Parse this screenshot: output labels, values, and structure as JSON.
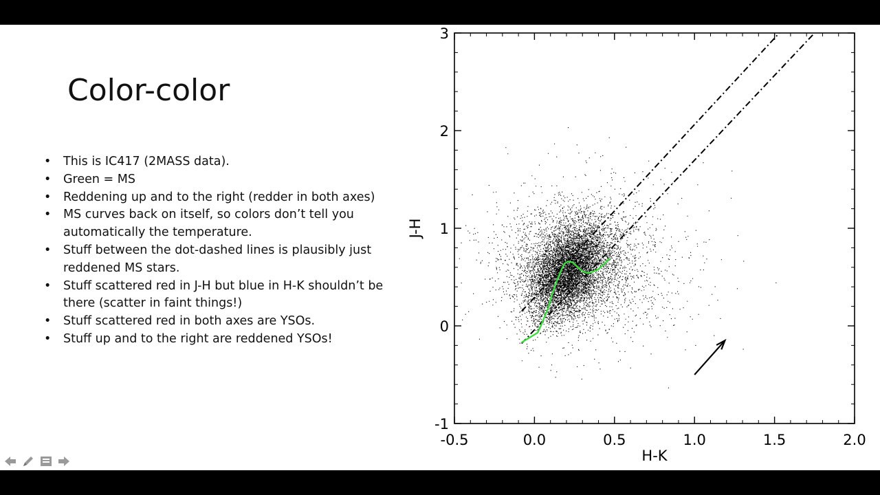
{
  "slide": {
    "title": "Color-color",
    "bullets": [
      "This is IC417 (2MASS data).",
      "Green = MS",
      "Reddening up and to the right (redder in both axes)",
      "MS curves back on itself, so colors don’t tell you automatically the temperature.",
      "Stuff between the dot-dashed lines is plausibly just reddened MS stars.",
      "Stuff scattered red in J-H but blue in H-K shouldn’t be there (scatter in faint things!)",
      "Stuff scattered red in both axes are YSOs.",
      "Stuff up and to the right are reddened YSOs!"
    ]
  },
  "nav": {
    "icons": [
      "prev-arrow-icon",
      "pen-icon",
      "menu-icon",
      "next-arrow-icon"
    ]
  },
  "colors": {
    "main_sequence": "#3ddc3d",
    "points": "#000000",
    "lines": "#000000"
  },
  "chart_data": {
    "type": "scatter",
    "xlabel": "H-K",
    "ylabel": "J-H",
    "xlim": [
      -0.5,
      2.0
    ],
    "ylim": [
      -1,
      3
    ],
    "xticks": [
      "-0.5",
      "0.0",
      "0.5",
      "1.0",
      "1.5",
      "2.0"
    ],
    "yticks": [
      "-1",
      "0",
      "1",
      "2",
      "3"
    ],
    "xtick_values": [
      -0.5,
      0.0,
      0.5,
      1.0,
      1.5,
      2.0
    ],
    "ytick_values": [
      -1,
      0,
      1,
      2,
      3
    ],
    "grid": false,
    "scatter_cluster": {
      "description_center": [
        0.2,
        0.55
      ],
      "approx_point_count": 9000
    },
    "main_sequence": {
      "x": [
        -0.08,
        -0.03,
        0.02,
        0.04,
        0.06,
        0.09,
        0.11,
        0.14,
        0.17,
        0.19,
        0.21,
        0.24,
        0.27,
        0.3,
        0.33,
        0.36,
        0.4,
        0.44,
        0.47
      ],
      "y": [
        -0.17,
        -0.12,
        -0.07,
        0.0,
        0.08,
        0.2,
        0.32,
        0.46,
        0.58,
        0.64,
        0.66,
        0.65,
        0.6,
        0.56,
        0.54,
        0.55,
        0.58,
        0.64,
        0.69
      ]
    },
    "reddening_lines": [
      {
        "x": [
          -0.08,
          1.53
        ],
        "y": [
          0.15,
          3.0
        ]
      },
      {
        "x": [
          -0.08,
          1.75
        ],
        "y": [
          -0.18,
          3.0
        ]
      }
    ],
    "reddening_vector": {
      "x": [
        1.0,
        1.19
      ],
      "y": [
        -0.5,
        -0.15
      ]
    }
  }
}
